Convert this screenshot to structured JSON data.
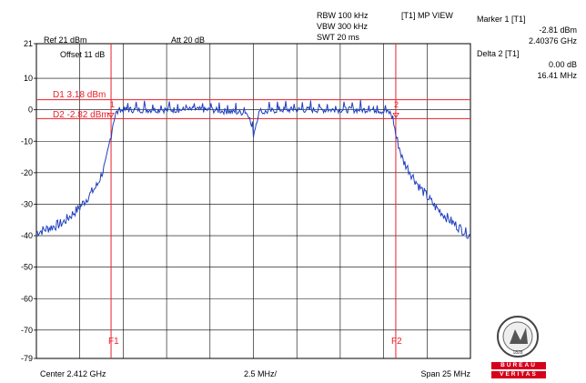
{
  "header": {
    "rbw": "RBW 100 kHz",
    "vbw": "VBW 300 kHz",
    "swt": "SWT 20 ms",
    "view": "[T1] MP VIEW",
    "ref": "Ref 21 dBm",
    "att": "Att  20 dB",
    "offset": "Offset 11 dB"
  },
  "markers": {
    "marker1_title": "Marker 1 [T1]",
    "marker1_level": "-2.81 dBm",
    "marker1_freq": "2.40376 GHz",
    "delta2_title": "Delta 2 [T1]",
    "delta2_level": "0.00 dB",
    "delta2_freq": "16.41 MHz",
    "marker1_num": "1",
    "marker2_num": "2"
  },
  "display_lines": {
    "d1_label": "D1 3.18 dBm",
    "d1_value": 3.18,
    "d2_label": "D2 -2.82 dBm",
    "d2_value": -2.82,
    "f1_label": "F1",
    "f2_label": "F2",
    "line_color": "#e8202a"
  },
  "footer": {
    "center": "Center 2.412 GHz",
    "div": "2.5 MHz/",
    "span": "Span 25 MHz"
  },
  "logo": {
    "name": "BUREAU VERITAS",
    "top_text": "BUREAU",
    "bottom_text": "VERITAS",
    "year": "1828"
  },
  "chart_data": {
    "type": "line",
    "x_unit": "MHz offset from center",
    "xlim": [
      -12.5,
      12.5
    ],
    "ylim": [
      -79,
      21
    ],
    "yticks": [
      21,
      10,
      0,
      -10,
      -20,
      -30,
      -40,
      -50,
      -60,
      -70,
      -79
    ],
    "trace_color": "#1f3fbf",
    "series": [
      {
        "x": [
          -12.5,
          -11.0,
          -10.0,
          -9.0,
          -8.5,
          -8.2,
          -8.05,
          -7.9,
          -7.5,
          -6.5,
          -5.0,
          -4.0,
          -2.5,
          -1.5,
          -0.3,
          0,
          0.3,
          1.5,
          3.0,
          4.5,
          6.0,
          7.0,
          7.9,
          8.05,
          8.2,
          8.6,
          9.5,
          10.5,
          11.5,
          12.5
        ],
        "y": [
          -39,
          -36,
          -31,
          -24,
          -17,
          -8,
          -3,
          -1,
          0,
          0,
          0,
          0,
          0,
          -0.5,
          -1,
          -8,
          -1,
          0,
          0,
          0,
          0,
          0,
          -1,
          -3,
          -8,
          -16,
          -24,
          -31,
          -36,
          -40
        ]
      }
    ],
    "f1_x": -8.2,
    "f2_x": 8.2,
    "marker1": {
      "x": -8.2,
      "y": -2.81
    },
    "marker2": {
      "x": 8.21,
      "y": -2.81
    }
  }
}
